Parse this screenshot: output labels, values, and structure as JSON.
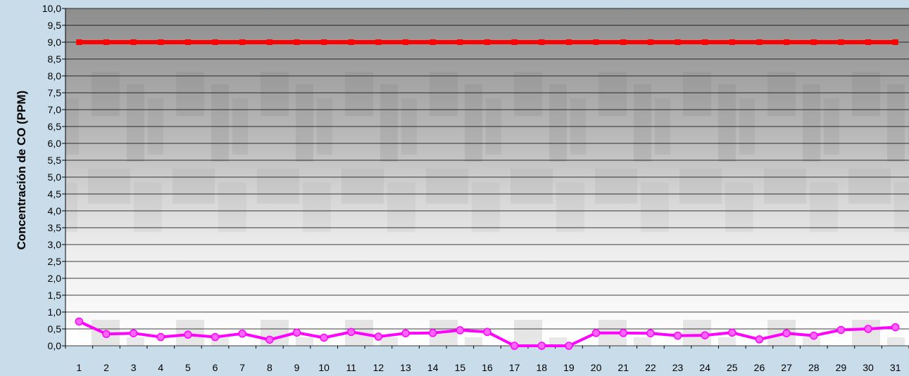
{
  "chart_data": {
    "type": "line",
    "title": "",
    "xlabel": "",
    "ylabel": "Concentración de CO (PPM)",
    "x": [
      "1",
      "2",
      "3",
      "4",
      "5",
      "6",
      "7",
      "8",
      "9",
      "10",
      "11",
      "12",
      "13",
      "14",
      "15",
      "16",
      "17",
      "18",
      "19",
      "20",
      "21",
      "22",
      "23",
      "24",
      "25",
      "26",
      "27",
      "28",
      "29",
      "30",
      "31"
    ],
    "ylim": [
      0,
      10
    ],
    "y_ticks": [
      "0,0",
      "0,5",
      "1,0",
      "1,5",
      "2,0",
      "2,5",
      "3,0",
      "3,5",
      "4,0",
      "4,5",
      "5,0",
      "5,5",
      "6,0",
      "6,5",
      "7,0",
      "7,5",
      "8,0",
      "8,5",
      "9,0",
      "9,5",
      "10,0"
    ],
    "grid": true,
    "series": [
      {
        "color": "#ff0000",
        "values": [
          9,
          9,
          9,
          9,
          9,
          9,
          9,
          9,
          9,
          9,
          9,
          9,
          9,
          9,
          9,
          9,
          9,
          9,
          9,
          9,
          9,
          9,
          9,
          9,
          9,
          9,
          9,
          9,
          9,
          9,
          9
        ]
      },
      {
        "color": "#ff00ff",
        "values": [
          0.72,
          0.35,
          0.37,
          0.26,
          0.33,
          0.26,
          0.36,
          0.18,
          0.39,
          0.24,
          0.41,
          0.27,
          0.37,
          0.38,
          0.46,
          0.41,
          0.0,
          0.0,
          0.0,
          0.38,
          0.38,
          0.37,
          0.3,
          0.31,
          0.39,
          0.19,
          0.37,
          0.3,
          0.47,
          0.5,
          0.55
        ]
      }
    ]
  }
}
